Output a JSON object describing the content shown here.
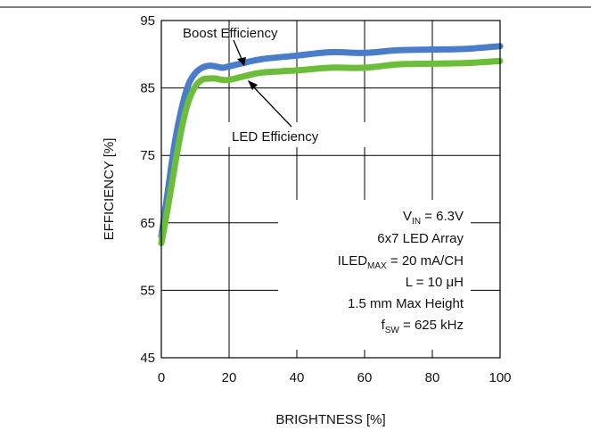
{
  "chart_data": {
    "type": "line",
    "xlabel": "BRIGHTNESS [%]",
    "ylabel": "EFFICIENCY [%]",
    "xlim": [
      0,
      100
    ],
    "ylim": [
      45,
      95
    ],
    "xticks": [
      "0",
      "20",
      "40",
      "60",
      "80",
      "100"
    ],
    "yticks": [
      "95",
      "85",
      "75",
      "65",
      "55",
      "45"
    ],
    "grid": true,
    "series": [
      {
        "name": "Boost Efficiency",
        "color": "#4a7cc9",
        "x": [
          0,
          2,
          4,
          6,
          8,
          10,
          12,
          14,
          16,
          18,
          20,
          25,
          30,
          40,
          50,
          60,
          70,
          80,
          90,
          100
        ],
        "y": [
          63,
          70,
          77,
          82,
          85.5,
          87.2,
          88,
          88.3,
          88.2,
          88.0,
          88.2,
          88.8,
          89.3,
          89.8,
          90.3,
          90.2,
          90.6,
          90.7,
          90.8,
          91.2
        ]
      },
      {
        "name": "LED Efficiency",
        "color": "#6cbd3a",
        "x": [
          0,
          2,
          4,
          6,
          8,
          10,
          12,
          14,
          16,
          18,
          20,
          25,
          30,
          40,
          50,
          60,
          70,
          80,
          90,
          100
        ],
        "y": [
          62,
          67.5,
          73.5,
          79,
          83,
          85.2,
          86.2,
          86.4,
          86.4,
          86.2,
          86.2,
          86.8,
          87.3,
          87.6,
          88.0,
          88.0,
          88.5,
          88.6,
          88.7,
          89.0
        ]
      }
    ],
    "annotations": {
      "boost": "Boost Efficiency",
      "led": "LED Efficiency"
    },
    "conditions": {
      "vin": {
        "main": "V",
        "sub": "IN",
        "rest": " = 6.3V"
      },
      "array": "6x7 LED Array",
      "iled": {
        "main": "ILED",
        "sub": "MAX",
        "rest": " = 20 mA/CH"
      },
      "inductor": "L = 10 μH",
      "height": "1.5 mm Max Height",
      "fsw": {
        "main": "f",
        "sub": "SW",
        "rest": " = 625 kHz"
      }
    }
  }
}
